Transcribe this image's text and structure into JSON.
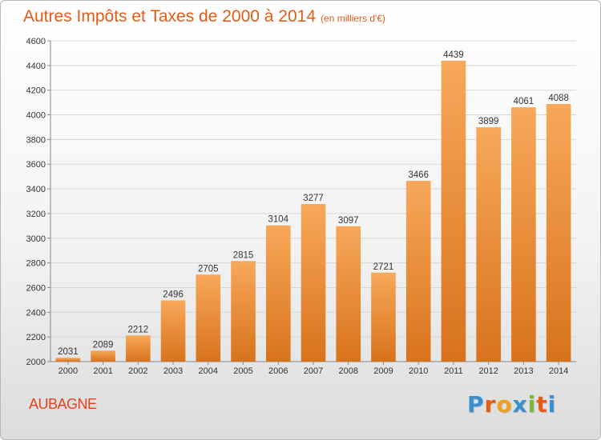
{
  "header": {
    "title": "Autres Impôts et Taxes de 2000 à 2014",
    "subtitle": "(en milliers d'€)"
  },
  "footer": {
    "city": "AUBAGNE",
    "brand_letters": [
      "P",
      "r",
      "o",
      "x",
      "i",
      "t",
      "i"
    ],
    "brand_colors": [
      "#3a8fd0",
      "#e85a14",
      "#f0a020",
      "#3a8fd0",
      "#7ab83a",
      "#e85a14",
      "#3a8fd0"
    ]
  },
  "colors": {
    "bar_light": "#f7a85a",
    "bar_dark": "#d8731c",
    "grid": "#d6d6d6",
    "axis": "#888888",
    "text": "#333333"
  },
  "chart_data": {
    "type": "bar",
    "title": "Autres Impôts et Taxes de 2000 à 2014",
    "subtitle": "(en milliers d'€)",
    "categories": [
      "2000",
      "2001",
      "2002",
      "2003",
      "2004",
      "2005",
      "2006",
      "2007",
      "2008",
      "2009",
      "2010",
      "2011",
      "2012",
      "2013",
      "2014"
    ],
    "values": [
      2031,
      2089,
      2212,
      2496,
      2705,
      2815,
      3104,
      3277,
      3097,
      2721,
      3466,
      4439,
      3899,
      4061,
      4088
    ],
    "data_labels": [
      "2031",
      "2089",
      "2212",
      "2496",
      "2705",
      "2815",
      "3104",
      "3277",
      "3097",
      "2721",
      "3466",
      "4439",
      "3899",
      "4061",
      "4088"
    ],
    "yticks": [
      2000,
      2200,
      2400,
      2600,
      2800,
      3000,
      3200,
      3400,
      3600,
      3800,
      4000,
      4200,
      4400,
      4600
    ],
    "ylim": [
      2000,
      4600
    ],
    "xlabel": "",
    "ylabel": "",
    "grid": true,
    "legend": "none"
  }
}
